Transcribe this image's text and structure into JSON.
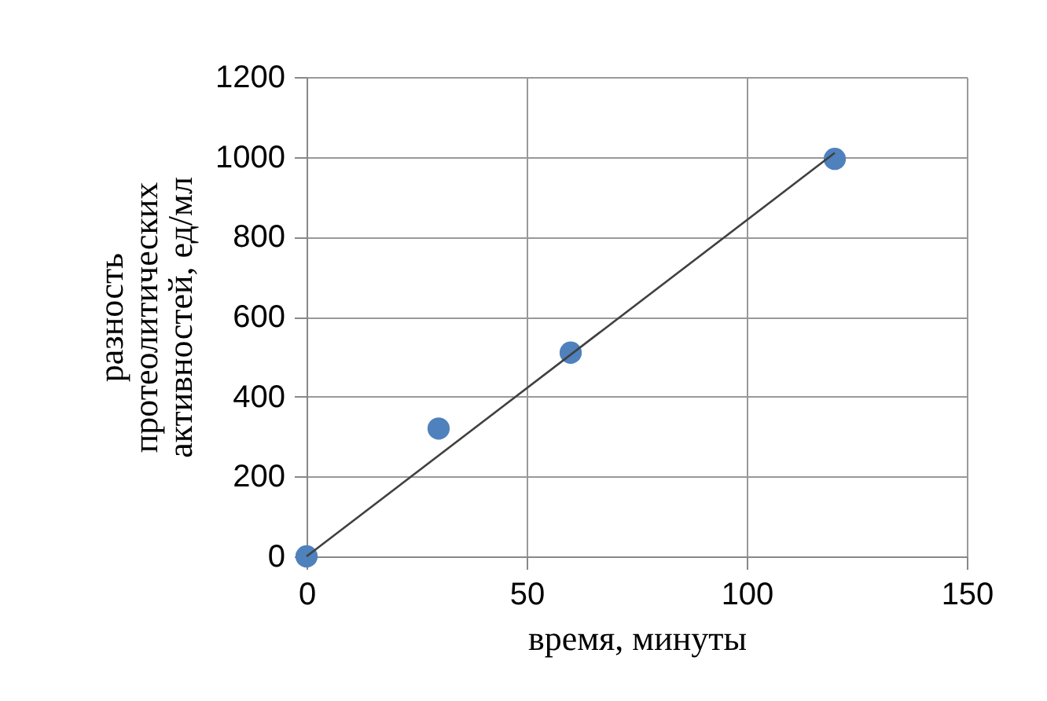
{
  "chart_data": {
    "type": "scatter",
    "xlabel": "время, минуты",
    "ylabel": "разность протеолитических активностей, ед/мл",
    "series": [
      {
        "color": "#4f81bd",
        "marker": "circle",
        "x": [
          0,
          30,
          60,
          120
        ],
        "values": [
          0,
          320,
          510,
          995
        ]
      },
      {
        "type": "line",
        "color": "#404040",
        "marker": "none",
        "x": [
          0,
          120
        ],
        "values": [
          0,
          1010
        ]
      }
    ],
    "xlim": [
      0,
      150
    ],
    "xticks": [
      0,
      50,
      100,
      150
    ],
    "ylim": [
      0,
      1200
    ],
    "yticks": [
      0,
      200,
      400,
      600,
      800,
      1000,
      1200
    ],
    "grid": true
  }
}
